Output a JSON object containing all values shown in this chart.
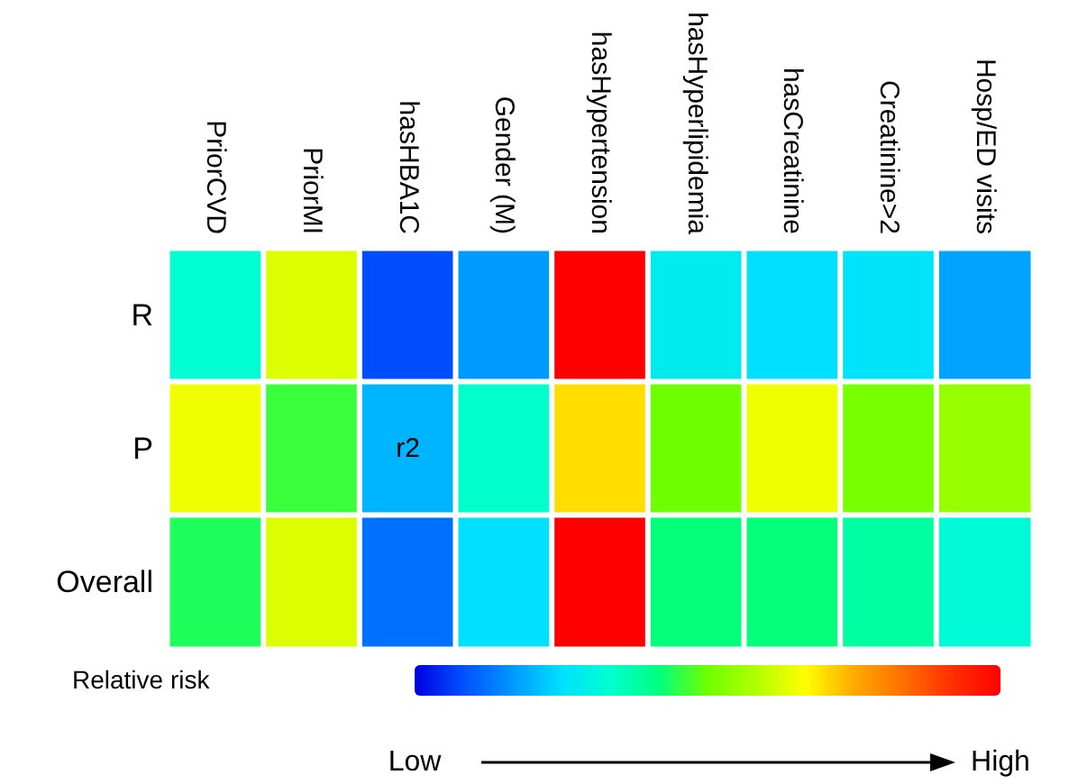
{
  "chart_data": {
    "type": "heatmap",
    "categories": [
      "PriorCVD",
      "PriorMI",
      "hasHBA1C",
      "Gender (M)",
      "hasHypertension",
      "hasHyperlipidemia",
      "hasCreatinine",
      "Creatinine>2",
      "Hosp/ED visits"
    ],
    "y_categories": [
      "R",
      "P",
      "Overall"
    ],
    "cells": [
      [
        0.33,
        0.63,
        0.08,
        0.17,
        1.0,
        0.28,
        0.25,
        0.26,
        0.18
      ],
      [
        0.65,
        0.46,
        0.2,
        0.34,
        0.7,
        0.5,
        0.65,
        0.51,
        0.55
      ],
      [
        0.44,
        0.63,
        0.12,
        0.25,
        1.0,
        0.42,
        0.42,
        0.38,
        0.32
      ]
    ],
    "cell_labels": [
      [
        null,
        null,
        null,
        null,
        null,
        null,
        null,
        null,
        null
      ],
      [
        null,
        null,
        "r2",
        null,
        null,
        null,
        null,
        null,
        null
      ],
      [
        null,
        null,
        null,
        null,
        null,
        null,
        null,
        null,
        null
      ]
    ],
    "clabel": "Relative risk",
    "clim": [
      0,
      1
    ],
    "cticks": [
      {
        "value": 0,
        "label": "Low"
      },
      {
        "value": 1,
        "label": "High"
      }
    ]
  }
}
